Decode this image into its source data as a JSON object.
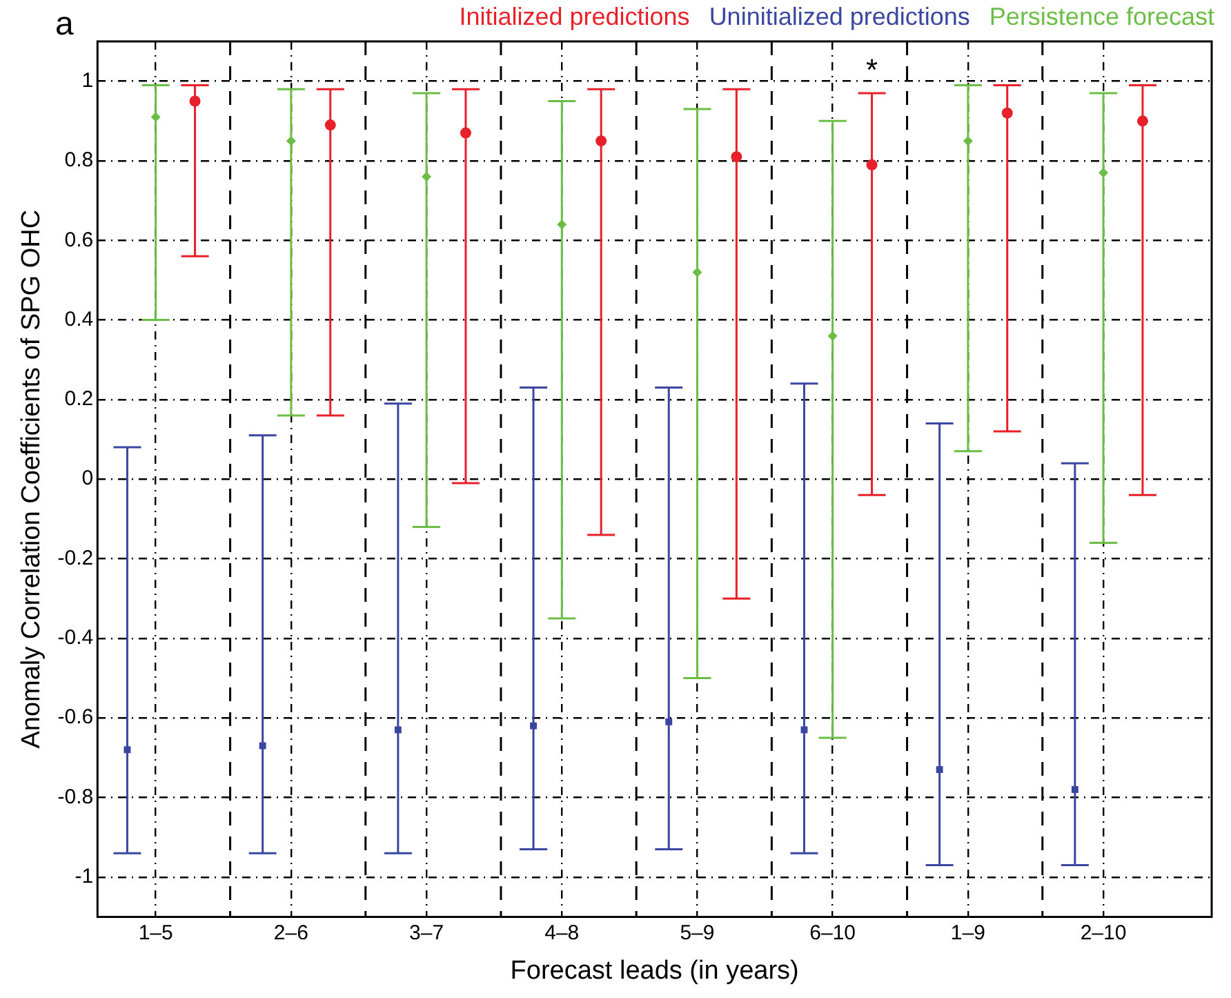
{
  "chart_data": {
    "type": "scatter",
    "xlabel": "Forecast leads (in years)",
    "ylabel": "Anomaly Correlation Coefficients of SPG OHC",
    "categories": [
      "1–5",
      "2–6",
      "3–7",
      "4–8",
      "5–9",
      "6–10",
      "1–9",
      "2–10"
    ],
    "series": [
      {
        "name": "Initialized predictions",
        "color": "#e8202a",
        "marker": "circle",
        "values": [
          0.95,
          0.89,
          0.87,
          0.85,
          0.81,
          0.79,
          0.92,
          0.9
        ],
        "errors": [
          [
            0.56,
            0.99
          ],
          [
            0.16,
            0.98
          ],
          [
            -0.01,
            0.98
          ],
          [
            -0.14,
            0.98
          ],
          [
            -0.3,
            0.98
          ],
          [
            -0.04,
            0.97
          ],
          [
            0.12,
            0.99
          ],
          [
            -0.04,
            0.99
          ]
        ]
      },
      {
        "name": "Uninitialized predictions",
        "color": "#3a47a0",
        "marker": "square",
        "values": [
          -0.68,
          -0.67,
          -0.63,
          -0.62,
          -0.61,
          -0.63,
          -0.73,
          -0.78
        ],
        "errors": [
          [
            -0.94,
            0.08
          ],
          [
            -0.94,
            0.11
          ],
          [
            -0.94,
            0.19
          ],
          [
            -0.93,
            0.23
          ],
          [
            -0.93,
            0.23
          ],
          [
            -0.94,
            0.24
          ],
          [
            -0.97,
            0.14
          ],
          [
            -0.97,
            0.04
          ]
        ]
      },
      {
        "name": "Persistence forecast",
        "color": "#6cbd45",
        "marker": "diamond",
        "values": [
          0.91,
          0.85,
          0.76,
          0.64,
          0.52,
          0.36,
          0.85,
          0.77
        ],
        "errors": [
          [
            0.4,
            0.99
          ],
          [
            0.16,
            0.98
          ],
          [
            -0.12,
            0.97
          ],
          [
            -0.35,
            0.95
          ],
          [
            -0.5,
            0.93
          ],
          [
            -0.65,
            0.9
          ],
          [
            0.07,
            0.99
          ],
          [
            -0.16,
            0.97
          ]
        ]
      }
    ],
    "ylim": [
      -1.1,
      1.1
    ],
    "yticks": [
      -1,
      -0.8,
      -0.6,
      -0.4,
      -0.2,
      0,
      0.2,
      0.4,
      0.6,
      0.8,
      1
    ],
    "grid": true,
    "legend": "top",
    "annotations": [
      "a",
      "*"
    ]
  }
}
